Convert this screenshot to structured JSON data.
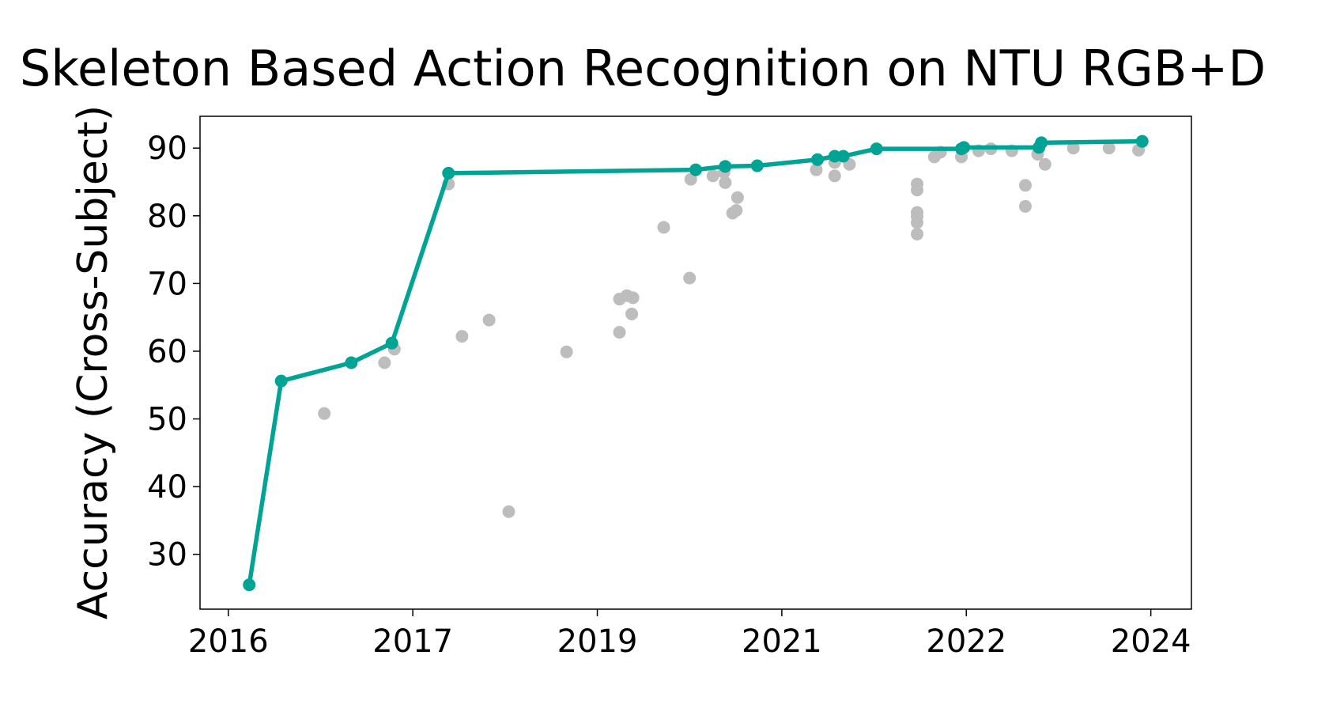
{
  "chart_data": {
    "type": "line",
    "title": "Skeleton Based Action Recognition on NTU RGB+D",
    "y_label": "Accuracy (Cross-Subject)",
    "xlim": [
      2015.77,
      2023.83
    ],
    "xticks": [
      {
        "value": 2016,
        "label": "2016"
      },
      {
        "value": 2017.5,
        "label": "2017"
      },
      {
        "value": 2019,
        "label": "2019"
      },
      {
        "value": 2020.5,
        "label": "2021"
      },
      {
        "value": 2022,
        "label": "2022"
      },
      {
        "value": 2023.5,
        "label": "2024"
      }
    ],
    "ylim": [
      21.9,
      94.7
    ],
    "yticks": [
      30,
      40,
      50,
      60,
      70,
      80,
      90
    ],
    "grid": false,
    "series": [
      {
        "color": "#bdbdbd",
        "style": "markers",
        "x": [
          2016.78,
          2017.27,
          2017.35,
          2017.79,
          2017.9,
          2018.12,
          2018.28,
          2018.75,
          2019.18,
          2019.18,
          2019.24,
          2019.29,
          2019.28,
          2019.54,
          2019.75,
          2019.76,
          2019.94,
          2020.04,
          2020.03,
          2020.13,
          2020.1,
          2020.14,
          2020.78,
          2020.93,
          2020.93,
          2021.05,
          2021.6,
          2021.6,
          2021.6,
          2021.6,
          2021.6,
          2021.6,
          2021.74,
          2021.79,
          2021.96,
          2022.1,
          2022.2,
          2022.37,
          2022.48,
          2022.48,
          2022.58,
          2022.64,
          2022.87,
          2023.16,
          2023.4
        ],
        "values": [
          50.8,
          58.3,
          60.3,
          84.7,
          62.2,
          64.6,
          36.3,
          59.9,
          62.8,
          67.7,
          68.2,
          67.9,
          65.5,
          78.3,
          70.8,
          85.4,
          85.9,
          84.9,
          86.4,
          80.8,
          80.4,
          82.7,
          86.8,
          85.9,
          87.9,
          87.6,
          84.7,
          83.8,
          80.5,
          79.9,
          79.0,
          77.3,
          88.7,
          89.4,
          88.7,
          89.6,
          89.9,
          89.6,
          84.5,
          81.4,
          89.1,
          87.6,
          90.0,
          90.0,
          89.7
        ]
      },
      {
        "color": "#00a394",
        "style": "lines+markers",
        "x": [
          2016.17,
          2016.43,
          2017.0,
          2017.33,
          2017.79,
          2019.8,
          2020.04,
          2020.3,
          2020.79,
          2020.93,
          2021.0,
          2021.27,
          2021.96,
          2021.98,
          2022.59,
          2022.61,
          2023.43
        ],
        "values": [
          25.5,
          55.6,
          58.3,
          61.2,
          86.3,
          86.8,
          87.3,
          87.4,
          88.3,
          88.8,
          88.8,
          89.9,
          89.9,
          90.1,
          90.1,
          90.8,
          91.0
        ]
      }
    ]
  }
}
